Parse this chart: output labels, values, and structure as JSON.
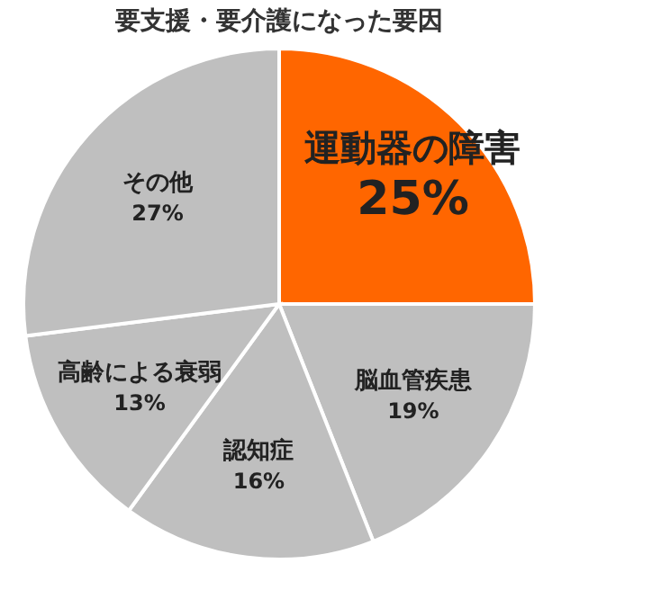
{
  "chart_data": {
    "type": "pie",
    "title": "要支援・要介護になった要因",
    "categories": [
      "運動器の障害",
      "脳血管疾患",
      "認知症",
      "高齢による衰弱",
      "その他"
    ],
    "values": [
      25,
      19,
      16,
      13,
      27
    ],
    "value_labels": [
      "25%",
      "19%",
      "16%",
      "13%",
      "27%"
    ],
    "colors": [
      "#ff6600",
      "#bfbfbf",
      "#bfbfbf",
      "#bfbfbf",
      "#bfbfbf"
    ],
    "legend": false
  }
}
